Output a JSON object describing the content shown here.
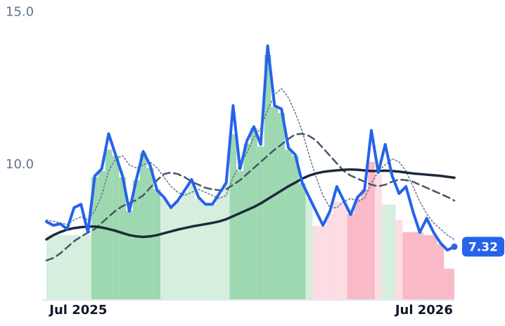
{
  "chart_data": {
    "type": "line",
    "categories": [
      null,
      null,
      null,
      null,
      "Jul 2025",
      null,
      null,
      null,
      null,
      null,
      null,
      null,
      null,
      null,
      null,
      null,
      null,
      null,
      null,
      null,
      null,
      null,
      null,
      null,
      null,
      null,
      null,
      null,
      null,
      null,
      null,
      null,
      null,
      null,
      null,
      null,
      null,
      null,
      null,
      null,
      null,
      null,
      null,
      null,
      null,
      null,
      null,
      null,
      null,
      null,
      null,
      null,
      null,
      null,
      "Jul 2026",
      null,
      null,
      null,
      null,
      null
    ],
    "ylim": [
      5.6,
      15.4
    ],
    "yticks": [
      {
        "value": 10,
        "label": "10.0"
      },
      {
        "value": 15,
        "label": "15.0"
      }
    ],
    "bands": {
      "values": [
        7.7,
        7.7,
        7.7,
        7.7,
        7.7,
        7.7,
        7.7,
        9.6,
        9.8,
        10.5,
        10.3,
        9.6,
        8.5,
        9.5,
        10.4,
        9.9,
        9.2,
        8.9,
        8.6,
        8.8,
        9.1,
        9.4,
        8.9,
        8.7,
        8.7,
        9.0,
        9.4,
        11.0,
        9.8,
        10.7,
        11.2,
        10.6,
        13.6,
        11.9,
        11.7,
        10.5,
        10.3,
        9.4,
        8.9,
        8.0,
        8.0,
        8.4,
        8.8,
        8.8,
        8.4,
        8.9,
        9.2,
        10.1,
        9.7,
        8.7,
        8.7,
        8.2,
        7.8,
        7.8,
        7.8,
        7.7,
        7.7,
        7.4,
        6.6,
        6.6
      ],
      "colors": [
        "#d5eedd",
        "#d5eedd",
        "#d5eedd",
        "#d5eedd",
        "#d5eedd",
        "#d5eedd",
        "#d5eedd",
        "#9dd8b1",
        "#9dd8b1",
        "#9dd8b1",
        "#9dd8b1",
        "#9dd8b1",
        "#9dd8b1",
        "#9dd8b1",
        "#9dd8b1",
        "#9dd8b1",
        "#9dd8b1",
        "#d5eedd",
        "#d5eedd",
        "#d5eedd",
        "#d5eedd",
        "#d5eedd",
        "#d5eedd",
        "#d5eedd",
        "#d5eedd",
        "#d5eedd",
        "#d5eedd",
        "#9dd8b1",
        "#9dd8b1",
        "#9dd8b1",
        "#9dd8b1",
        "#9dd8b1",
        "#9dd8b1",
        "#9dd8b1",
        "#9dd8b1",
        "#9dd8b1",
        "#9dd8b1",
        "#9dd8b1",
        "#d5eedd",
        "#fcdde3",
        "#fcdde3",
        "#fcdde3",
        "#fcdde3",
        "#fcdde3",
        "#f9b9c6",
        "#f9b9c6",
        "#f9b9c6",
        "#f9b9c6",
        "#fcdde3",
        "#d5eedd",
        "#d5eedd",
        "#fcdde3",
        "#f9b9c6",
        "#f9b9c6",
        "#f9b9c6",
        "#f9b9c6",
        "#f9b9c6",
        "#f9b9c6",
        "#f9b9c6",
        "#f9b9c6"
      ]
    },
    "series": [
      {
        "color": "#2563eb",
        "style": "price",
        "values": [
          8.14,
          8.02,
          8.07,
          7.9,
          8.6,
          8.71,
          7.79,
          9.64,
          9.87,
          11.02,
          10.33,
          9.64,
          8.48,
          9.52,
          10.44,
          9.98,
          9.17,
          8.94,
          8.6,
          8.83,
          9.17,
          9.52,
          8.94,
          8.71,
          8.71,
          9.06,
          9.41,
          11.94,
          9.87,
          10.79,
          11.25,
          10.67,
          13.9,
          11.94,
          11.83,
          10.56,
          10.33,
          9.41,
          8.94,
          8.48,
          8.02,
          8.48,
          9.29,
          8.83,
          8.37,
          8.94,
          9.17,
          11.13,
          9.75,
          10.67,
          9.64,
          9.06,
          9.29,
          8.48,
          7.79,
          8.25,
          7.79,
          7.44,
          7.21,
          7.32
        ]
      },
      {
        "color": "#1e293b",
        "style": "thick",
        "values": [
          7.56,
          7.7,
          7.8,
          7.88,
          7.93,
          7.96,
          7.98,
          7.98,
          7.95,
          7.9,
          7.84,
          7.77,
          7.7,
          7.66,
          7.64,
          7.66,
          7.7,
          7.76,
          7.82,
          7.88,
          7.93,
          7.98,
          8.02,
          8.06,
          8.1,
          8.15,
          8.22,
          8.32,
          8.42,
          8.52,
          8.62,
          8.74,
          8.88,
          9.02,
          9.16,
          9.3,
          9.42,
          9.55,
          9.65,
          9.72,
          9.77,
          9.8,
          9.82,
          9.84,
          9.85,
          9.84,
          9.82,
          9.8,
          9.8,
          9.81,
          9.8,
          9.78,
          9.75,
          9.72,
          9.7,
          9.68,
          9.66,
          9.64,
          9.61,
          9.58
        ]
      },
      {
        "color": "#475569",
        "style": "dashed",
        "values": [
          6.87,
          6.95,
          7.1,
          7.3,
          7.5,
          7.65,
          7.78,
          7.9,
          8.1,
          8.3,
          8.5,
          8.65,
          8.75,
          8.85,
          9.0,
          9.25,
          9.5,
          9.7,
          9.75,
          9.7,
          9.6,
          9.45,
          9.35,
          9.25,
          9.2,
          9.17,
          9.2,
          9.35,
          9.5,
          9.7,
          9.9,
          10.1,
          10.3,
          10.5,
          10.67,
          10.85,
          11.0,
          11.02,
          10.95,
          10.8,
          10.55,
          10.3,
          10.05,
          9.8,
          9.65,
          9.55,
          9.45,
          9.35,
          9.3,
          9.35,
          9.45,
          9.52,
          9.5,
          9.45,
          9.35,
          9.25,
          9.15,
          9.05,
          8.95,
          8.83
        ]
      },
      {
        "color": "#64748b",
        "style": "dotted",
        "values": [
          8.2,
          8.15,
          8.1,
          8.05,
          8.2,
          8.3,
          8.2,
          8.5,
          9.0,
          9.8,
          10.2,
          10.3,
          10.0,
          9.9,
          10.0,
          10.1,
          9.9,
          9.6,
          9.3,
          9.1,
          9.0,
          9.1,
          9.2,
          9.1,
          9.0,
          8.9,
          9.0,
          9.6,
          10.0,
          10.4,
          10.9,
          11.2,
          11.8,
          12.3,
          12.5,
          12.2,
          11.7,
          11.1,
          10.3,
          9.6,
          9.0,
          8.6,
          8.6,
          8.8,
          8.9,
          8.8,
          8.9,
          9.4,
          9.8,
          10.0,
          10.2,
          10.1,
          9.8,
          9.3,
          8.8,
          8.4,
          8.1,
          7.9,
          7.7,
          7.55
        ]
      }
    ],
    "last_label_color": "#2563eb"
  }
}
